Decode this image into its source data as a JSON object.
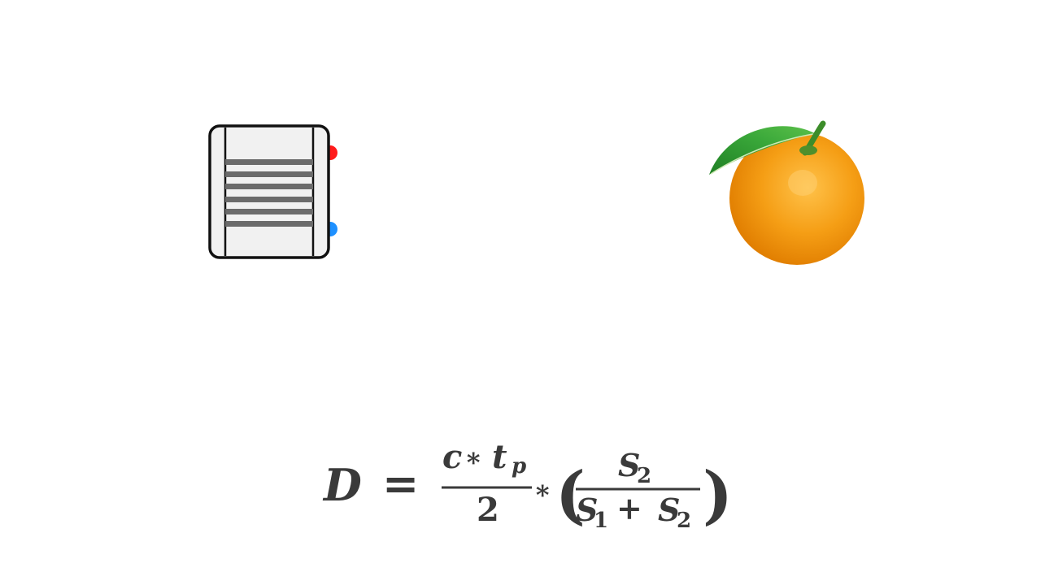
{
  "scene": {
    "items": [
      {
        "name": "ultrasonic-sensor",
        "icon": "ultrasonic-sensor-icon",
        "indicator_colors": {
          "top": "#ff1a1a",
          "bottom": "#1e90ff"
        }
      },
      {
        "name": "orange",
        "icon": "orange-fruit-icon",
        "colors": {
          "fruit": "#f39a12",
          "leaf": "#2f9a2f"
        }
      }
    ]
  },
  "formula": {
    "lhs": "D",
    "equals": "=",
    "num_c": "c",
    "num_star": "∗",
    "num_t": "t",
    "num_t_sub": "p",
    "den_two": "2",
    "mult_star": "∗",
    "open_paren": "(",
    "close_paren": ")",
    "inner_num": "S",
    "inner_num_sub": "2",
    "inner_den_s1": "S",
    "inner_den_s1_sub": "1",
    "inner_den_plus": "+",
    "inner_den_s2": "S",
    "inner_den_s2_sub": "2"
  }
}
